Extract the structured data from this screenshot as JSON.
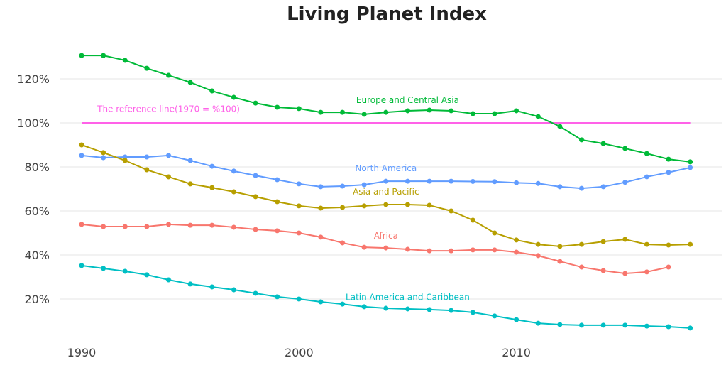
{
  "chart_data": {
    "type": "line",
    "title": "Living Planet Index",
    "xlabel": "",
    "ylabel": "",
    "x_ticks": [
      "1990",
      "2000",
      "2010"
    ],
    "y_ticks": [
      "20%",
      "40%",
      "60%",
      "80%",
      "100%",
      "120%"
    ],
    "xlim": [
      1989,
      2019
    ],
    "ylim": [
      1,
      136
    ],
    "grid": "horizontal",
    "legend": "none (inline labels)",
    "x": [
      1990,
      1991,
      1992,
      1993,
      1994,
      1995,
      1996,
      1997,
      1998,
      1999,
      2000,
      2001,
      2002,
      2003,
      2004,
      2005,
      2006,
      2007,
      2008,
      2009,
      2010,
      2011,
      2012,
      2013,
      2014,
      2015,
      2016,
      2017,
      2018
    ],
    "series": [
      {
        "name": "Europe and Central Asia",
        "color": "#00ba38",
        "values": [
          130.6,
          130.6,
          128.4,
          124.8,
          121.6,
          118.4,
          114.5,
          111.6,
          109,
          107.1,
          106.5,
          104.8,
          104.8,
          103.9,
          104.8,
          105.5,
          105.8,
          105.5,
          104.2,
          104.2,
          105.5,
          102.9,
          98.4,
          92.3,
          90.6,
          88.4,
          86.1,
          83.5,
          82.3
        ]
      },
      {
        "name": "North America",
        "color": "#619cff",
        "values": [
          85.2,
          84.2,
          84.5,
          84.5,
          85.2,
          82.9,
          80.3,
          78.1,
          76.1,
          74.2,
          72.3,
          71,
          71.3,
          71.9,
          73.5,
          73.5,
          73.5,
          73.5,
          73.4,
          73.3,
          72.8,
          72.5,
          71,
          70.3,
          71,
          73,
          75.5,
          77.5,
          79.7
        ]
      },
      {
        "name": "Asia and Pacific",
        "color": "#b79f00",
        "values": [
          90,
          86.5,
          82.9,
          78.7,
          75.5,
          72.3,
          70.6,
          68.7,
          66.5,
          64.2,
          62.3,
          61.3,
          61.6,
          62.3,
          62.9,
          62.9,
          62.6,
          60,
          55.8,
          50,
          46.8,
          44.8,
          43.9,
          44.8,
          46.1,
          47.1,
          44.8,
          44.5,
          44.8
        ]
      },
      {
        "name": "Africa",
        "color": "#f8766d",
        "values": [
          53.9,
          52.9,
          52.9,
          52.9,
          53.9,
          53.5,
          53.5,
          52.6,
          51.6,
          51,
          50,
          48.1,
          45.5,
          43.5,
          43.2,
          42.6,
          41.9,
          41.9,
          42.3,
          42.3,
          41.3,
          39.7,
          37.1,
          34.5,
          32.9,
          31.6,
          32.3,
          34.5,
          null
        ]
      },
      {
        "name": "Latin America and Caribbean",
        "color": "#00bfc4",
        "values": [
          35.2,
          33.9,
          32.6,
          31,
          28.7,
          26.8,
          25.5,
          24.2,
          22.6,
          21,
          20,
          18.7,
          17.7,
          16.5,
          15.8,
          15.5,
          15.2,
          14.8,
          13.9,
          12.3,
          10.6,
          9,
          8.4,
          8.1,
          8.1,
          8.1,
          7.7,
          7.4,
          6.8
        ]
      }
    ],
    "reference_line": {
      "label": "The reference line(1970 = %100)",
      "value": 100,
      "color": "#ff61e8",
      "x_range": [
        1990,
        2018
      ]
    },
    "annotations": [
      {
        "text": "Europe and Central Asia",
        "x": 2005,
        "y": 109,
        "color": "#00ba38"
      },
      {
        "text": "The reference line(1970 = %100)",
        "x": 1994,
        "y": 105,
        "color": "#ff61e8"
      },
      {
        "text": "North America",
        "x": 2004,
        "y": 78,
        "color": "#619cff"
      },
      {
        "text": "Asia and Pacific",
        "x": 2004,
        "y": 67.5,
        "color": "#b79f00"
      },
      {
        "text": "Africa",
        "x": 2004,
        "y": 47.5,
        "color": "#f8766d"
      },
      {
        "text": "Latin America and Caribbean",
        "x": 2005,
        "y": 19.5,
        "color": "#00bfc4"
      }
    ]
  }
}
